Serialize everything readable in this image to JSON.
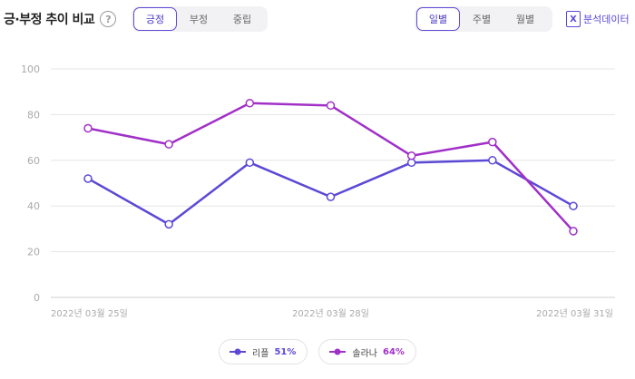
{
  "header": {
    "title": "긍·부정 추이 비교",
    "help_glyph": "?",
    "sentiment_tabs": [
      {
        "label": "긍정",
        "active": true
      },
      {
        "label": "부정",
        "active": false
      },
      {
        "label": "중립",
        "active": false
      }
    ],
    "period_tabs": [
      {
        "label": "일별",
        "active": true
      },
      {
        "label": "주별",
        "active": false
      },
      {
        "label": "월별",
        "active": false
      }
    ],
    "export_label": "분석데이터",
    "export_icon_glyph": "X",
    "export_icon": "excel-icon"
  },
  "colors": {
    "accent": "#5b49d6",
    "series1": "#5b49d6",
    "series2": "#a030c8",
    "grid": "#e6e6e6",
    "tick_text": "#aaaaaa"
  },
  "chart_data": {
    "type": "line",
    "x": [
      "2022-03-25",
      "2022-03-26",
      "2022-03-27",
      "2022-03-28",
      "2022-03-29",
      "2022-03-30",
      "2022-03-31"
    ],
    "x_tick_labels": [
      {
        "index": 0,
        "label": "2022년 03월 25일"
      },
      {
        "index": 3,
        "label": "2022년 03월 28일"
      },
      {
        "index": 6,
        "label": "2022년 03월 31일"
      }
    ],
    "y_ticks": [
      0,
      20,
      40,
      60,
      80,
      100
    ],
    "ylim": [
      0,
      100
    ],
    "grid": true,
    "legend_position": "bottom-center",
    "series": [
      {
        "name": "리플",
        "summary": "51%",
        "values": [
          52,
          32,
          59,
          44,
          59,
          60,
          40
        ]
      },
      {
        "name": "솔라나",
        "summary": "64%",
        "values": [
          74,
          67,
          85,
          84,
          62,
          68,
          29
        ]
      }
    ]
  }
}
